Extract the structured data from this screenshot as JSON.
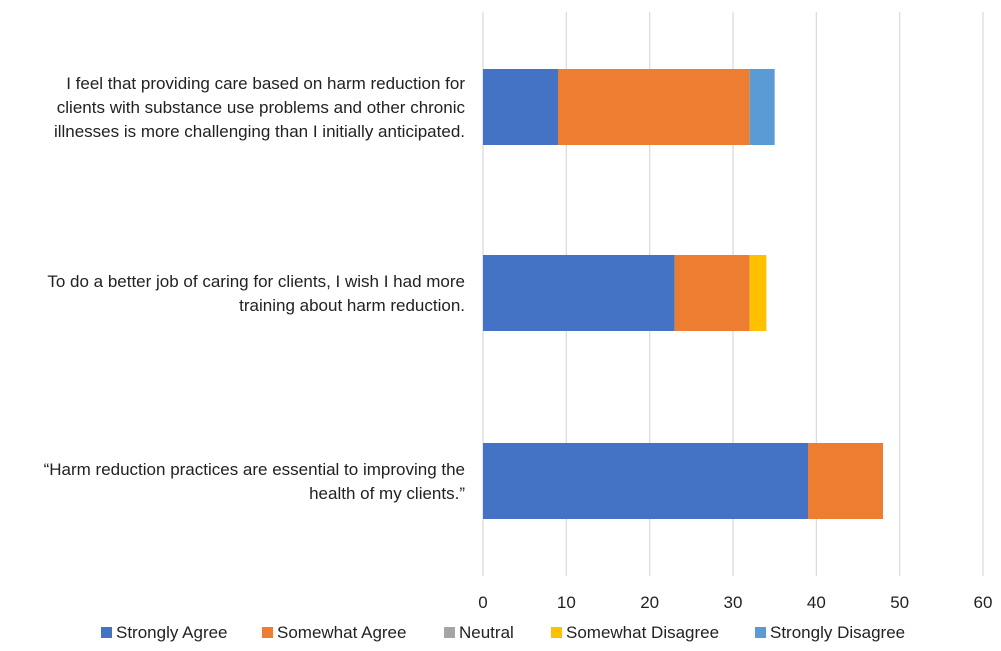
{
  "chart_data": {
    "type": "bar",
    "orientation": "horizontal",
    "stacked": true,
    "title": "",
    "xlabel": "",
    "ylabel": "",
    "xlim": [
      0,
      60
    ],
    "x_ticks": [
      0,
      10,
      20,
      30,
      40,
      50,
      60
    ],
    "grid": "vertical",
    "legend_position": "bottom",
    "categories": [
      [
        "I feel that providing care based on harm reduction for",
        "clients with substance use problems and other chronic",
        "illnesses is more challenging than I initially anticipated."
      ],
      [
        "To do a better job of caring for clients, I wish I had more",
        "training about harm reduction."
      ],
      [
        "“Harm reduction practices are essential to improving the",
        "health of my clients.”"
      ]
    ],
    "series": [
      {
        "name": "Strongly Agree",
        "color": "#4472C4",
        "values": [
          9,
          23,
          39
        ]
      },
      {
        "name": "Somewhat Agree",
        "color": "#ED7D31",
        "values": [
          23,
          9,
          9
        ]
      },
      {
        "name": "Neutral",
        "color": "#A5A5A5",
        "values": [
          0,
          0,
          0
        ]
      },
      {
        "name": "Somewhat Disagree",
        "color": "#FFC000",
        "values": [
          0,
          2,
          0
        ]
      },
      {
        "name": "Strongly Disagree",
        "color": "#5B9BD5",
        "values": [
          3,
          0,
          0
        ]
      }
    ]
  }
}
